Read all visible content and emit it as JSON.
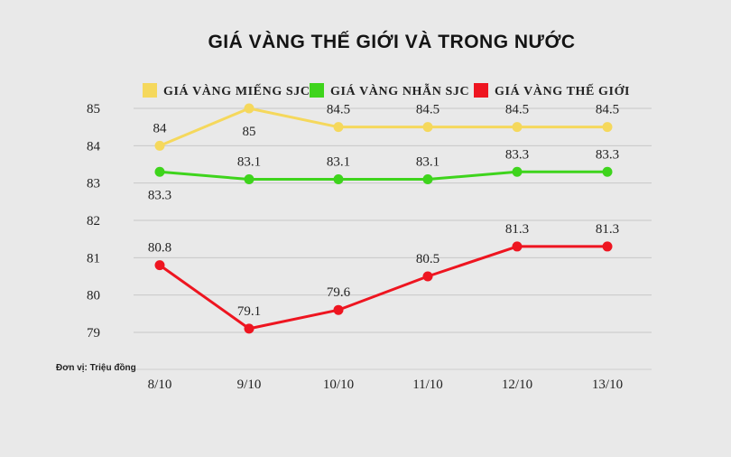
{
  "chart_data": {
    "type": "line",
    "title": "GIÁ VÀNG THẾ GIỚI VÀ TRONG NƯỚC",
    "unit_note": "Đơn vị: Triệu đồng",
    "categories": [
      "8/10",
      "9/10",
      "10/10",
      "11/10",
      "12/10",
      "13/10"
    ],
    "y_ticks": [
      "79",
      "80",
      "81",
      "82",
      "83",
      "84",
      "85"
    ],
    "ylim": [
      79,
      85
    ],
    "grid": true,
    "legend_position": "top",
    "series": [
      {
        "name": "GIÁ VÀNG MIẾNG SJC",
        "color": "#f5d85c",
        "values": [
          84,
          85,
          84.5,
          84.5,
          84.5,
          84.5
        ],
        "labels": [
          "84",
          "85",
          "84.5",
          "84.5",
          "84.5",
          "84.5"
        ],
        "label_side": [
          "above",
          "below",
          "above",
          "above",
          "above",
          "above"
        ]
      },
      {
        "name": "GIÁ VÀNG NHẪN SJC",
        "color": "#3ed41c",
        "values": [
          83.3,
          83.1,
          83.1,
          83.1,
          83.3,
          83.3
        ],
        "labels": [
          "83.3",
          "83.1",
          "83.1",
          "83.1",
          "83.3",
          "83.3"
        ],
        "label_side": [
          "below",
          "above",
          "above",
          "above",
          "above",
          "above"
        ]
      },
      {
        "name": "GIÁ VÀNG THẾ GIỚI",
        "color": "#ee1520",
        "values": [
          80.8,
          79.1,
          79.6,
          80.5,
          81.3,
          81.3
        ],
        "labels": [
          "80.8",
          "79.1",
          "79.6",
          "80.5",
          "81.3",
          "81.3"
        ],
        "label_side": [
          "above",
          "above",
          "above",
          "above",
          "above",
          "above"
        ]
      }
    ]
  }
}
